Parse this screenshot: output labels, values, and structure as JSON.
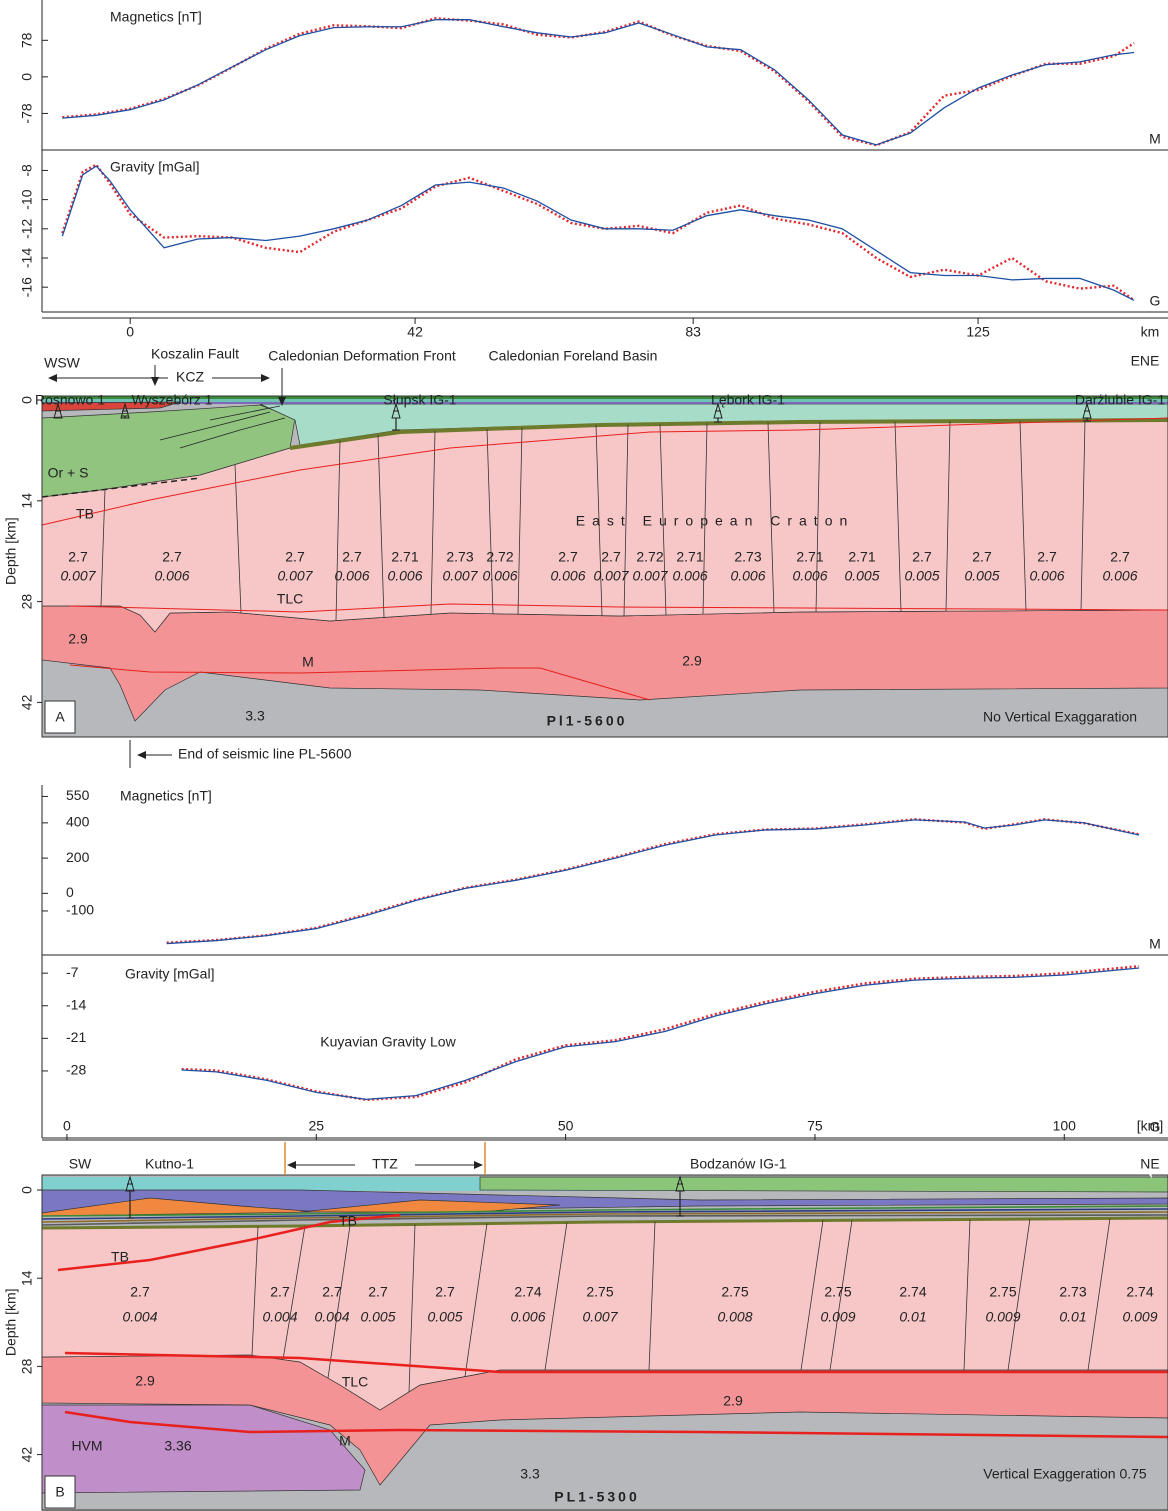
{
  "chart_data": [
    {
      "type": "line",
      "title": "Magnetics [nT]",
      "corner_label": "M",
      "x": [
        -10,
        -5,
        0,
        5,
        10,
        15,
        20,
        25,
        30,
        35,
        40,
        45,
        50,
        55,
        60,
        65,
        70,
        75,
        80,
        85,
        90,
        95,
        100,
        105,
        110,
        115,
        120,
        125,
        130,
        135,
        140,
        145,
        148
      ],
      "series": [
        {
          "color": "#e3262b",
          "style": "dotted",
          "values": [
            -86,
            -80,
            -68,
            -47,
            -18,
            20,
            60,
            92,
            110,
            108,
            104,
            125,
            120,
            112,
            90,
            84,
            96,
            118,
            88,
            66,
            55,
            12,
            -52,
            -128,
            -146,
            -118,
            -40,
            -28,
            2,
            28,
            28,
            44,
            72
          ]
        },
        {
          "color": "#1d4fa3",
          "style": "solid",
          "values": [
            -88,
            -82,
            -70,
            -49,
            -17,
            21,
            58,
            88,
            105,
            107,
            107,
            122,
            122,
            107,
            94,
            85,
            94,
            115,
            90,
            64,
            58,
            15,
            -49,
            -124,
            -145,
            -120,
            -66,
            -24,
            4,
            26,
            32,
            47,
            52
          ]
        }
      ],
      "xlim": [
        -13,
        153
      ],
      "ylim": [
        -156,
        164
      ],
      "yticks": [
        -78,
        0,
        78
      ]
    },
    {
      "type": "line",
      "title": "Gravity [mGal]",
      "corner_label": "G",
      "x_label": "km",
      "x": [
        -10,
        -7,
        -5,
        -3,
        0,
        5,
        10,
        15,
        20,
        25,
        30,
        35,
        40,
        45,
        50,
        55,
        60,
        65,
        70,
        75,
        80,
        85,
        90,
        95,
        100,
        105,
        110,
        115,
        120,
        125,
        130,
        135,
        140,
        145,
        148
      ],
      "series": [
        {
          "color": "#e3262b",
          "style": "dotted",
          "values": [
            -12.3,
            -8.1,
            -7.6,
            -8.9,
            -11.0,
            -12.6,
            -12.5,
            -12.6,
            -13.3,
            -13.6,
            -12.2,
            -11.4,
            -10.6,
            -9.1,
            -8.5,
            -9.4,
            -10.3,
            -11.6,
            -12.0,
            -11.8,
            -12.3,
            -10.9,
            -10.4,
            -11.3,
            -11.7,
            -12.3,
            -14.0,
            -15.3,
            -14.8,
            -15.2,
            -14.0,
            -15.6,
            -16.1,
            -15.9,
            -16.9
          ]
        },
        {
          "color": "#1d4fa3",
          "style": "solid",
          "values": [
            -12.5,
            -8.3,
            -7.7,
            -8.7,
            -10.7,
            -13.3,
            -12.7,
            -12.6,
            -12.8,
            -12.5,
            -12.0,
            -11.4,
            -10.4,
            -9.0,
            -8.8,
            -9.2,
            -10.1,
            -11.4,
            -12.0,
            -12.0,
            -12.1,
            -11.1,
            -10.7,
            -11.1,
            -11.4,
            -12.0,
            -13.5,
            -15.0,
            -15.2,
            -15.2,
            -15.5,
            -15.4,
            -15.4,
            -16.2,
            -16.9
          ]
        }
      ],
      "xlim": [
        -13,
        153
      ],
      "xticks": [
        0,
        42,
        83,
        125
      ],
      "ylim": [
        -17.7,
        -6.6
      ],
      "yticks": [
        -16,
        -14,
        -12,
        -10,
        -8
      ]
    },
    {
      "type": "line",
      "title": "Magnetics [nT]",
      "corner_label": "M",
      "x": [
        10,
        15,
        20,
        25,
        30,
        35,
        40,
        45,
        50,
        55,
        60,
        65,
        70,
        75,
        80,
        85,
        90,
        92,
        95,
        98,
        102,
        107.5
      ],
      "series": [
        {
          "color": "#e3262b",
          "style": "dotted",
          "values": [
            -280,
            -265,
            -238,
            -196,
            -120,
            -36,
            32,
            78,
            135,
            205,
            280,
            336,
            362,
            368,
            392,
            420,
            402,
            366,
            392,
            420,
            398,
            335
          ]
        },
        {
          "color": "#1d4fa3",
          "style": "solid",
          "values": [
            -285,
            -268,
            -240,
            -200,
            -126,
            -40,
            29,
            74,
            131,
            200,
            274,
            331,
            360,
            365,
            388,
            417,
            405,
            371,
            388,
            417,
            400,
            331
          ]
        }
      ],
      "xlim": [
        -2.5,
        110.4
      ],
      "ylim": [
        -350,
        615
      ],
      "yticks": [
        -100,
        0,
        200,
        400,
        550
      ]
    },
    {
      "type": "line",
      "title": "Gravity [mGal]",
      "corner_label": "G",
      "x_label": "[km]",
      "annotation": "Kuyavian Gravity Low",
      "x": [
        11.5,
        15,
        20,
        25,
        30,
        35,
        40,
        45,
        50,
        55,
        60,
        65,
        70,
        75,
        80,
        85,
        90,
        95,
        100,
        107.5
      ],
      "series": [
        {
          "color": "#e3262b",
          "style": "dotted",
          "values": [
            -27.6,
            -27.9,
            -29.8,
            -32.4,
            -34.2,
            -33.6,
            -30.4,
            -25.5,
            -22.5,
            -21.4,
            -19.0,
            -15.8,
            -13.2,
            -11.0,
            -9.2,
            -8.2,
            -7.8,
            -7.6,
            -7.0,
            -5.5
          ]
        },
        {
          "color": "#1d4fa3",
          "style": "solid",
          "values": [
            -27.8,
            -28.2,
            -30.0,
            -32.6,
            -34.1,
            -33.3,
            -30.0,
            -26.0,
            -22.8,
            -21.7,
            -19.5,
            -16.2,
            -13.6,
            -11.4,
            -9.6,
            -8.5,
            -8.1,
            -7.9,
            -7.4,
            -5.9
          ]
        }
      ],
      "xlim": [
        -2.5,
        110.4
      ],
      "xticks": [
        0,
        25,
        50,
        75,
        100
      ],
      "ylim": [
        -42.4,
        -3.1
      ],
      "yticks": [
        -28,
        -21,
        -14,
        -7
      ]
    }
  ],
  "sections": [
    {
      "panel_label": "A",
      "depth_label": "Depth [km]",
      "depth_ticks": [
        0,
        14,
        28,
        42
      ],
      "header": [
        "WSW",
        "Koszalin Fault",
        "KCZ",
        "Caledonian Deformation Front",
        "Caledonian Foreland Basin",
        "ENE"
      ],
      "wells": [
        "Rosnowo 1",
        "Wyszebórz 1",
        "Słupsk IG-1",
        "Lębork IG-1",
        "Darżlubie IG-1"
      ],
      "blocks": [
        {
          "density": "2.7",
          "susceptibility": "0.007"
        },
        {
          "density": "2.7",
          "susceptibility": "0.006"
        },
        {
          "density": "2.7",
          "susceptibility": "0.007"
        },
        {
          "density": "2.7",
          "susceptibility": "0.006"
        },
        {
          "density": "2.71",
          "susceptibility": "0.006"
        },
        {
          "density": "2.73",
          "susceptibility": "0.007"
        },
        {
          "density": "2.72",
          "susceptibility": "0.006"
        },
        {
          "density": "2.7",
          "susceptibility": "0.006"
        },
        {
          "density": "2.7",
          "susceptibility": "0.007"
        },
        {
          "density": "2.72",
          "susceptibility": "0.007"
        },
        {
          "density": "2.71",
          "susceptibility": "0.006"
        },
        {
          "density": "2.73",
          "susceptibility": "0.006"
        },
        {
          "density": "2.71",
          "susceptibility": "0.006"
        },
        {
          "density": "2.71",
          "susceptibility": "0.005"
        },
        {
          "density": "2.7",
          "susceptibility": "0.005"
        },
        {
          "density": "2.7",
          "susceptibility": "0.005"
        },
        {
          "density": "2.7",
          "susceptibility": "0.006"
        },
        {
          "density": "2.7",
          "susceptibility": "0.006"
        }
      ],
      "labels": [
        "Or + S",
        "TB",
        "East European Craton",
        "TLC",
        "2.9",
        "2.9",
        "M",
        "3.3",
        "Pl1-5600",
        "No Vertical Exaggaration"
      ],
      "footnote": "End of seismic line PL-5600"
    },
    {
      "panel_label": "B",
      "depth_label": "Depth [km]",
      "depth_ticks": [
        0,
        14,
        28,
        42
      ],
      "header": [
        "SW",
        "TTZ",
        "NE"
      ],
      "wells": [
        "Kutno-1",
        "Bodzanów IG-1"
      ],
      "blocks": [
        {
          "density": "2.7",
          "susceptibility": "0.004"
        },
        {
          "density": "2.7",
          "susceptibility": "0.004"
        },
        {
          "density": "2.7",
          "susceptibility": "0.004"
        },
        {
          "density": "2.7",
          "susceptibility": "0.005"
        },
        {
          "density": "2.7",
          "susceptibility": "0.005"
        },
        {
          "density": "2.74",
          "susceptibility": "0.006"
        },
        {
          "density": "2.75",
          "susceptibility": "0.007"
        },
        {
          "density": "2.75",
          "susceptibility": "0.008"
        },
        {
          "density": "2.75",
          "susceptibility": "0.009"
        },
        {
          "density": "2.74",
          "susceptibility": "0.01"
        },
        {
          "density": "2.75",
          "susceptibility": "0.009"
        },
        {
          "density": "2.73",
          "susceptibility": "0.01"
        },
        {
          "density": "2.74",
          "susceptibility": "0.009"
        }
      ],
      "labels": [
        "TB",
        "TB",
        "TLC",
        "2.9",
        "2.9",
        "M",
        "HVM",
        "3.36",
        "3.3",
        "PL1-5300",
        "Vertical Exaggeration 0.75"
      ]
    }
  ]
}
